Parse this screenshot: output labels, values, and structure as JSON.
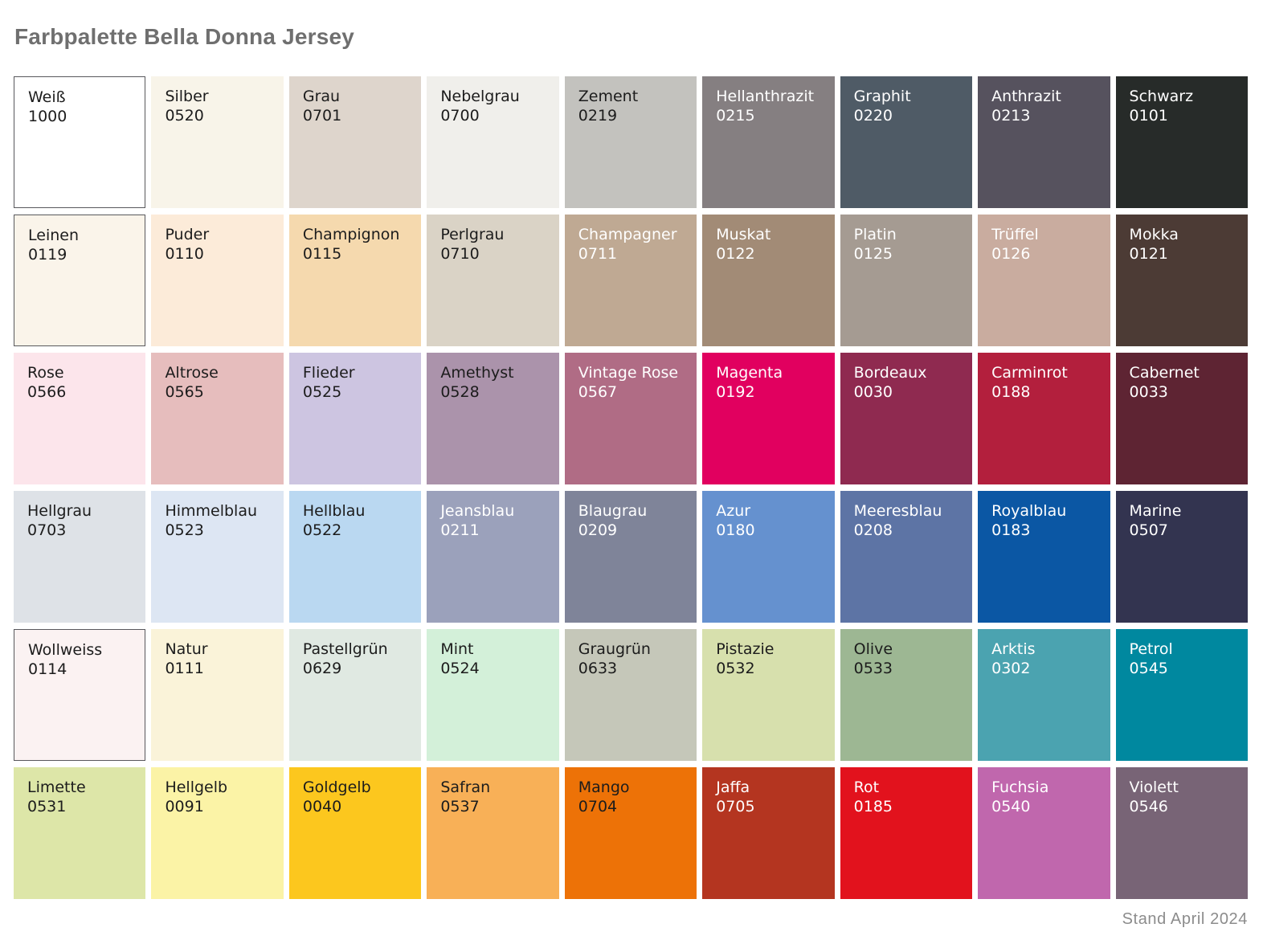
{
  "page": {
    "title": "Farbpalette Bella Donna Jersey",
    "footer": "Stand April 2024"
  },
  "palette": {
    "rows": [
      {
        "swatches": [
          {
            "name": "Weiß",
            "code": "1000",
            "color": "#ffffff",
            "text": "dark",
            "border": true
          },
          {
            "name": "Silber",
            "code": "0520",
            "color": "#f8f4e9",
            "text": "dark"
          },
          {
            "name": "Grau",
            "code": "0701",
            "color": "#ded5cc",
            "text": "dark"
          },
          {
            "name": "Nebelgrau",
            "code": "0700",
            "color": "#f0efeb",
            "text": "dark"
          },
          {
            "name": "Zement",
            "code": "0219",
            "color": "#c3c2be",
            "text": "dark"
          },
          {
            "name": "Hellanthrazit",
            "code": "0215",
            "color": "#857f81",
            "text": "white"
          },
          {
            "name": "Graphit",
            "code": "0220",
            "color": "#4f5b66",
            "text": "white"
          },
          {
            "name": "Anthrazit",
            "code": "0213",
            "color": "#56525e",
            "text": "white"
          },
          {
            "name": "Schwarz",
            "code": "0101",
            "color": "#272b29",
            "text": "white"
          }
        ]
      },
      {
        "swatches": [
          {
            "name": "Leinen",
            "code": "0119",
            "color": "#faf4ea",
            "text": "dark",
            "border": true
          },
          {
            "name": "Puder",
            "code": "0110",
            "color": "#fcebd9",
            "text": "dark"
          },
          {
            "name": "Champignon",
            "code": "0115",
            "color": "#f5d9ae",
            "text": "dark"
          },
          {
            "name": "Perlgrau",
            "code": "0710",
            "color": "#dad3c6",
            "text": "dark"
          },
          {
            "name": "Champagner",
            "code": "0711",
            "color": "#bfa993",
            "text": "white"
          },
          {
            "name": "Muskat",
            "code": "0122",
            "color": "#a28b76",
            "text": "white"
          },
          {
            "name": "Platin",
            "code": "0125",
            "color": "#a59b92",
            "text": "white"
          },
          {
            "name": "Trüffel",
            "code": "0126",
            "color": "#c9ac9f",
            "text": "white"
          },
          {
            "name": "Mokka",
            "code": "0121",
            "color": "#4c3b35",
            "text": "white"
          }
        ]
      },
      {
        "swatches": [
          {
            "name": "Rose",
            "code": "0566",
            "color": "#fce5eb",
            "text": "dark"
          },
          {
            "name": "Altrose",
            "code": "0565",
            "color": "#e6bdbd",
            "text": "dark"
          },
          {
            "name": "Flieder",
            "code": "0525",
            "color": "#cdc5e1",
            "text": "dark"
          },
          {
            "name": "Amethyst",
            "code": "0528",
            "color": "#ab93ab",
            "text": "dark"
          },
          {
            "name": "Vintage Rose",
            "code": "0567",
            "color": "#b06c85",
            "text": "white"
          },
          {
            "name": "Magenta",
            "code": "0192",
            "color": "#e1005f",
            "text": "white"
          },
          {
            "name": "Bordeaux",
            "code": "0030",
            "color": "#8f2a50",
            "text": "white"
          },
          {
            "name": "Carminrot",
            "code": "0188",
            "color": "#b31f3d",
            "text": "white"
          },
          {
            "name": "Cabernet",
            "code": "0033",
            "color": "#5e2433",
            "text": "white"
          }
        ]
      },
      {
        "swatches": [
          {
            "name": "Hellgrau",
            "code": "0703",
            "color": "#dee2e7",
            "text": "dark"
          },
          {
            "name": "Himmelblau",
            "code": "0523",
            "color": "#dde6f3",
            "text": "dark"
          },
          {
            "name": "Hellblau",
            "code": "0522",
            "color": "#bad8f1",
            "text": "dark"
          },
          {
            "name": "Jeansblau",
            "code": "0211",
            "color": "#9ba1bb",
            "text": "white"
          },
          {
            "name": "Blaugrau",
            "code": "0209",
            "color": "#7f8499",
            "text": "white"
          },
          {
            "name": "Azur",
            "code": "0180",
            "color": "#6591cf",
            "text": "white"
          },
          {
            "name": "Meeresblau",
            "code": "0208",
            "color": "#5d74a5",
            "text": "white"
          },
          {
            "name": "Royalblau",
            "code": "0183",
            "color": "#0b57a4",
            "text": "white"
          },
          {
            "name": "Marine",
            "code": "0507",
            "color": "#333450",
            "text": "white"
          }
        ]
      },
      {
        "swatches": [
          {
            "name": "Wollweiss",
            "code": "0114",
            "color": "#fbf2f2",
            "text": "dark",
            "border": true
          },
          {
            "name": "Natur",
            "code": "0111",
            "color": "#faf3d9",
            "text": "dark"
          },
          {
            "name": "Pastellgrün",
            "code": "0629",
            "color": "#e0e9e2",
            "text": "dark"
          },
          {
            "name": "Mint",
            "code": "0524",
            "color": "#d3f0d9",
            "text": "dark"
          },
          {
            "name": "Graugrün",
            "code": "0633",
            "color": "#c5c7b9",
            "text": "dark"
          },
          {
            "name": "Pistazie",
            "code": "0532",
            "color": "#d7e0ad",
            "text": "dark"
          },
          {
            "name": "Olive",
            "code": "0533",
            "color": "#9db793",
            "text": "dark"
          },
          {
            "name": "Arktis",
            "code": "0302",
            "color": "#4ba3b0",
            "text": "white"
          },
          {
            "name": "Petrol",
            "code": "0545",
            "color": "#00889f",
            "text": "white"
          }
        ]
      },
      {
        "swatches": [
          {
            "name": "Limette",
            "code": "0531",
            "color": "#dde6a8",
            "text": "dark"
          },
          {
            "name": "Hellgelb",
            "code": "0091",
            "color": "#fbf3a6",
            "text": "dark"
          },
          {
            "name": "Goldgelb",
            "code": "0040",
            "color": "#fcc71e",
            "text": "dark"
          },
          {
            "name": "Safran",
            "code": "0537",
            "color": "#f8b057",
            "text": "dark"
          },
          {
            "name": "Mango",
            "code": "0704",
            "color": "#ed7207",
            "text": "dark"
          },
          {
            "name": "Jaffa",
            "code": "0705",
            "color": "#b43520",
            "text": "white"
          },
          {
            "name": "Rot",
            "code": "0185",
            "color": "#e2121d",
            "text": "white"
          },
          {
            "name": "Fuchsia",
            "code": "0540",
            "color": "#c067ad",
            "text": "white"
          },
          {
            "name": "Violett",
            "code": "0546",
            "color": "#786476",
            "text": "white"
          }
        ]
      }
    ]
  }
}
